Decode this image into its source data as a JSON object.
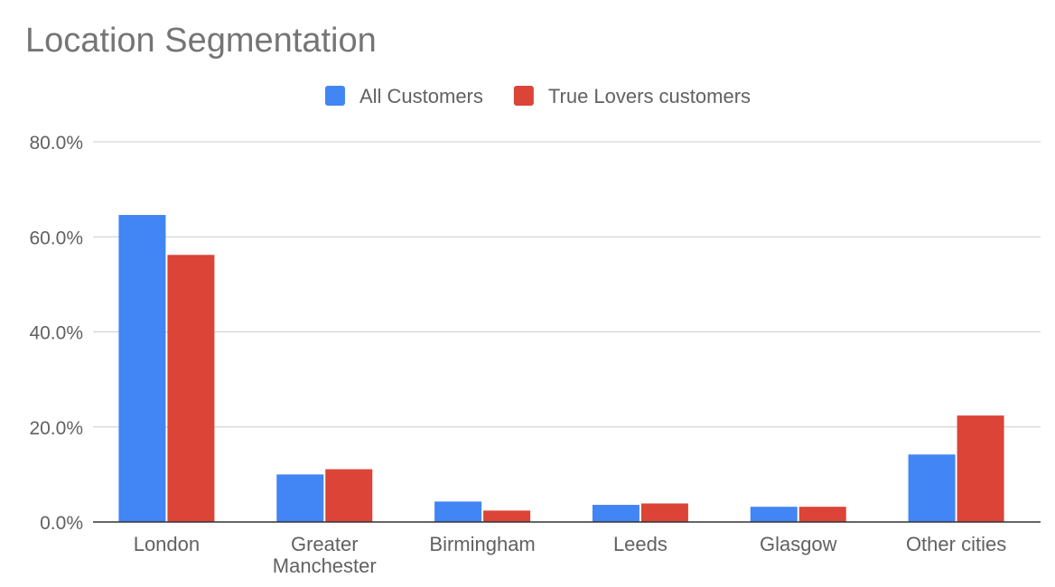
{
  "chart_data": {
    "type": "bar",
    "title": "Location Segmentation",
    "xlabel": "",
    "ylabel": "",
    "categories": [
      "London",
      "Greater Manchester",
      "Birmingham",
      "Leeds",
      "Glasgow",
      "Other cities"
    ],
    "series": [
      {
        "name": "All Customers",
        "color": "#4285f4",
        "values": [
          64.6,
          10.0,
          4.3,
          3.6,
          3.2,
          14.2
        ]
      },
      {
        "name": "True Lovers customers",
        "color": "#db4437",
        "values": [
          56.2,
          11.1,
          2.4,
          3.9,
          3.2,
          22.4
        ]
      }
    ],
    "ylim": [
      0,
      80
    ],
    "y_ticks": [
      "0.0%",
      "20.0%",
      "40.0%",
      "60.0%",
      "80.0%"
    ],
    "grid": true,
    "legend_position": "top-center"
  }
}
